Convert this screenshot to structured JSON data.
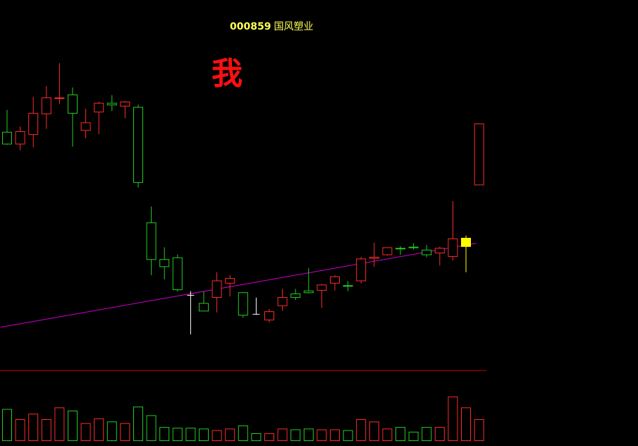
{
  "header": {
    "stock_code": "000859",
    "stock_name": "国风塑业",
    "annotation": "我"
  },
  "colors": {
    "background": "#000000",
    "up": "#ff2a2a",
    "down": "#22cc22",
    "doji": "#ffffff",
    "highlight": "#ffff00",
    "trendline": "#cc00cc",
    "divider": "#cc0000"
  },
  "chart_data": {
    "type": "candlestick",
    "title": "000859 国风塑业",
    "candles": [
      {
        "open": 7.37,
        "close": 7.57,
        "high": 7.94,
        "low": 7.35,
        "color": "down"
      },
      {
        "open": 7.37,
        "close": 7.58,
        "high": 7.66,
        "low": 7.26,
        "color": "up"
      },
      {
        "open": 7.53,
        "close": 7.89,
        "high": 8.16,
        "low": 7.31,
        "color": "up"
      },
      {
        "open": 7.88,
        "close": 8.15,
        "high": 8.34,
        "low": 7.62,
        "color": "up"
      },
      {
        "open": 8.14,
        "close": 8.15,
        "high": 8.73,
        "low": 8.04,
        "color": "up"
      },
      {
        "open": 7.89,
        "close": 8.2,
        "high": 8.32,
        "low": 7.32,
        "color": "down"
      },
      {
        "open": 7.6,
        "close": 7.73,
        "high": 7.96,
        "low": 7.46,
        "color": "up"
      },
      {
        "open": 7.91,
        "close": 8.06,
        "high": 8.08,
        "low": 7.53,
        "color": "up"
      },
      {
        "open": 8.03,
        "close": 8.06,
        "high": 8.19,
        "low": 7.92,
        "color": "down"
      },
      {
        "open": 8.01,
        "close": 8.08,
        "high": 8.09,
        "low": 7.8,
        "color": "up"
      },
      {
        "open": 6.72,
        "close": 7.99,
        "high": 8.03,
        "low": 6.63,
        "color": "down"
      },
      {
        "open": 5.42,
        "close": 6.04,
        "high": 6.31,
        "low": 5.15,
        "color": "down"
      },
      {
        "open": 5.3,
        "close": 5.42,
        "high": 5.62,
        "low": 5.08,
        "color": "down"
      },
      {
        "open": 4.91,
        "close": 5.45,
        "high": 5.5,
        "low": 4.87,
        "color": "down"
      },
      {
        "open": 4.79,
        "close": 4.81,
        "high": 4.88,
        "low": 4.15,
        "color": "doji"
      },
      {
        "open": 4.55,
        "close": 4.68,
        "high": 4.87,
        "low": 4.56,
        "color": "down"
      },
      {
        "open": 4.78,
        "close": 5.06,
        "high": 5.2,
        "low": 4.52,
        "color": "up"
      },
      {
        "open": 5.02,
        "close": 5.1,
        "high": 5.15,
        "low": 4.79,
        "color": "up"
      },
      {
        "open": 4.48,
        "close": 4.86,
        "high": 4.86,
        "low": 4.43,
        "color": "down"
      },
      {
        "open": 4.48,
        "close": 4.49,
        "high": 4.77,
        "low": 4.48,
        "color": "doji"
      },
      {
        "open": 4.4,
        "close": 4.54,
        "high": 4.58,
        "low": 4.35,
        "color": "up"
      },
      {
        "open": 4.64,
        "close": 4.78,
        "high": 4.92,
        "low": 4.55,
        "color": "up"
      },
      {
        "open": 4.78,
        "close": 4.84,
        "high": 4.92,
        "low": 4.73,
        "color": "down"
      },
      {
        "open": 4.86,
        "close": 4.89,
        "high": 5.27,
        "low": 4.84,
        "color": "down"
      },
      {
        "open": 4.9,
        "close": 4.99,
        "high": 5.0,
        "low": 4.6,
        "color": "up"
      },
      {
        "open": 5.02,
        "close": 5.13,
        "high": 5.15,
        "low": 4.89,
        "color": "up"
      },
      {
        "open": 4.97,
        "close": 4.98,
        "high": 5.05,
        "low": 4.88,
        "color": "down"
      },
      {
        "open": 5.06,
        "close": 5.43,
        "high": 5.46,
        "low": 5.01,
        "color": "up"
      },
      {
        "open": 5.44,
        "close": 5.46,
        "high": 5.7,
        "low": 5.29,
        "color": "up"
      },
      {
        "open": 5.5,
        "close": 5.62,
        "high": 5.62,
        "low": 5.48,
        "color": "up"
      },
      {
        "open": 5.6,
        "close": 5.61,
        "high": 5.64,
        "low": 5.49,
        "color": "down"
      },
      {
        "open": 5.62,
        "close": 5.63,
        "high": 5.69,
        "low": 5.58,
        "color": "down"
      },
      {
        "open": 5.5,
        "close": 5.58,
        "high": 5.66,
        "low": 5.45,
        "color": "down"
      },
      {
        "open": 5.53,
        "close": 5.61,
        "high": 5.63,
        "low": 5.31,
        "color": "up"
      },
      {
        "open": 5.47,
        "close": 5.77,
        "high": 6.4,
        "low": 5.4,
        "color": "up"
      },
      {
        "open": 5.64,
        "close": 5.78,
        "high": 5.82,
        "low": 5.2,
        "color": "highlight"
      },
      {
        "open": 6.68,
        "close": 7.71,
        "high": 7.71,
        "low": 6.68,
        "color": "up"
      }
    ],
    "volume": [
      {
        "value": 40,
        "color": "down"
      },
      {
        "value": 27,
        "color": "up"
      },
      {
        "value": 34,
        "color": "up"
      },
      {
        "value": 27,
        "color": "up"
      },
      {
        "value": 42,
        "color": "up"
      },
      {
        "value": 38,
        "color": "down"
      },
      {
        "value": 22,
        "color": "up"
      },
      {
        "value": 28,
        "color": "up"
      },
      {
        "value": 24,
        "color": "down"
      },
      {
        "value": 22,
        "color": "up"
      },
      {
        "value": 43,
        "color": "down"
      },
      {
        "value": 32,
        "color": "down"
      },
      {
        "value": 17,
        "color": "down"
      },
      {
        "value": 16,
        "color": "down"
      },
      {
        "value": 16,
        "color": "down"
      },
      {
        "value": 15,
        "color": "down"
      },
      {
        "value": 13,
        "color": "up"
      },
      {
        "value": 15,
        "color": "up"
      },
      {
        "value": 19,
        "color": "down"
      },
      {
        "value": 9,
        "color": "down"
      },
      {
        "value": 9,
        "color": "up"
      },
      {
        "value": 15,
        "color": "up"
      },
      {
        "value": 14,
        "color": "down"
      },
      {
        "value": 15,
        "color": "down"
      },
      {
        "value": 14,
        "color": "up"
      },
      {
        "value": 14,
        "color": "up"
      },
      {
        "value": 13,
        "color": "down"
      },
      {
        "value": 27,
        "color": "up"
      },
      {
        "value": 24,
        "color": "up"
      },
      {
        "value": 15,
        "color": "up"
      },
      {
        "value": 17,
        "color": "down"
      },
      {
        "value": 11,
        "color": "down"
      },
      {
        "value": 17,
        "color": "down"
      },
      {
        "value": 17,
        "color": "up"
      },
      {
        "value": 56,
        "color": "up"
      },
      {
        "value": 42,
        "color": "up"
      },
      {
        "value": 27,
        "color": "up"
      }
    ],
    "trendline": {
      "start": {
        "index": -0.5,
        "price": 4.27
      },
      "end": {
        "index": 35.8,
        "price": 5.69
      }
    },
    "ylim_price": [
      3.6,
      9.2
    ],
    "ylim_volume": [
      0,
      63
    ],
    "grid": false,
    "legend": "none"
  }
}
